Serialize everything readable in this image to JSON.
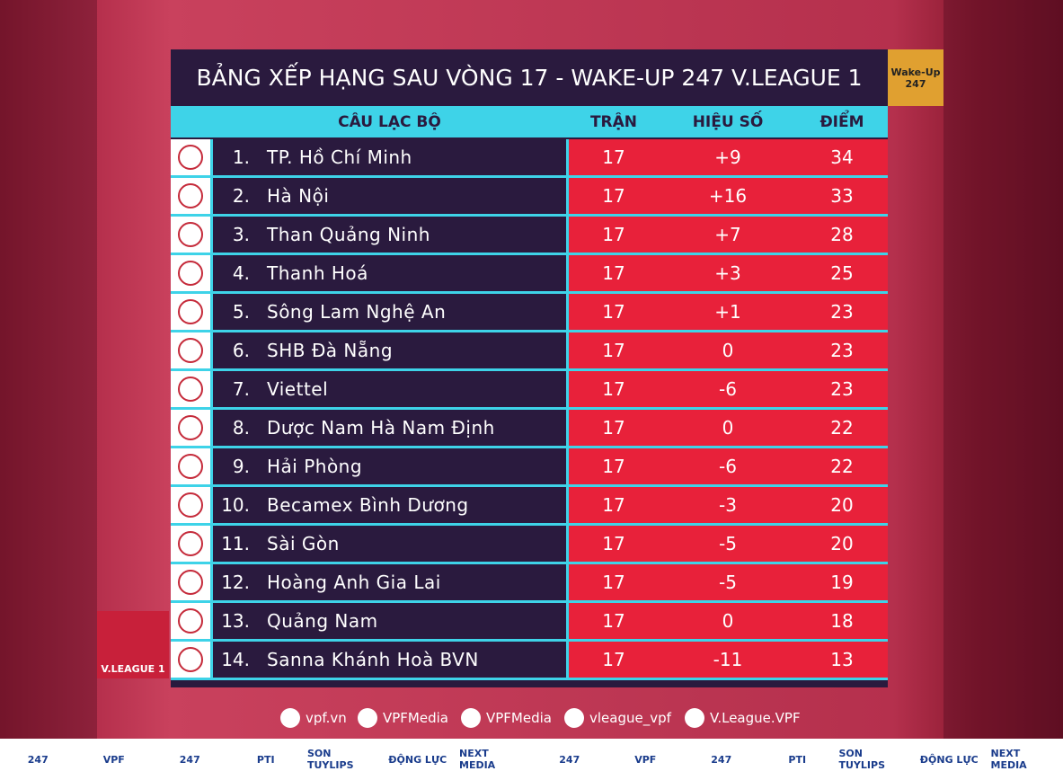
{
  "header": {
    "title": "BẢNG XẾP HẠNG SAU VÒNG 17 - WAKE-UP 247 V.LEAGUE 1",
    "brand": "Wake-Up 247"
  },
  "table": {
    "columns": [
      "CÂU LẠC BỘ",
      "TRẬN",
      "HIỆU SỐ",
      "ĐIỂM"
    ],
    "rows": [
      [
        "1.",
        "TP. Hồ Chí Minh",
        17,
        "+9",
        34
      ],
      [
        "2.",
        "Hà Nội",
        17,
        "+16",
        33
      ],
      [
        "3.",
        "Than Quảng Ninh",
        17,
        "+7",
        28
      ],
      [
        "4.",
        "Thanh Hoá",
        17,
        "+3",
        25
      ],
      [
        "5.",
        "Sông Lam Nghệ An",
        17,
        "+1",
        23
      ],
      [
        "6.",
        "SHB Đà Nẵng",
        17,
        "0",
        23
      ],
      [
        "7.",
        "Viettel",
        17,
        "-6",
        23
      ],
      [
        "8.",
        "Dược Nam Hà Nam Định",
        17,
        "0",
        22
      ],
      [
        "9.",
        "Hải Phòng",
        17,
        "-6",
        22
      ],
      [
        "10.",
        "Becamex Bình Dương",
        17,
        "-3",
        20
      ],
      [
        "11.",
        "Sài Gòn",
        17,
        "-5",
        20
      ],
      [
        "12.",
        "Hoàng Anh Gia Lai",
        17,
        "-5",
        19
      ],
      [
        "13.",
        "Quảng Nam",
        17,
        "0",
        18
      ],
      [
        "14.",
        "Sanna Khánh Hoà BVN",
        17,
        "-11",
        13
      ]
    ]
  },
  "league_logo": "V.LEAGUE 1",
  "social": [
    "vpf.vn",
    "VPFMedia",
    "VPFMedia",
    "vleague_vpf",
    "V.League.VPF"
  ],
  "sponsors": [
    "247",
    "VPF",
    "247",
    "PTI",
    "SON TUYLIPS",
    "ĐỘNG LỰC",
    "NEXT MEDIA",
    "247",
    "VPF",
    "247",
    "PTI",
    "SON TUYLIPS",
    "ĐỘNG LỰC",
    "NEXT MEDIA"
  ]
}
